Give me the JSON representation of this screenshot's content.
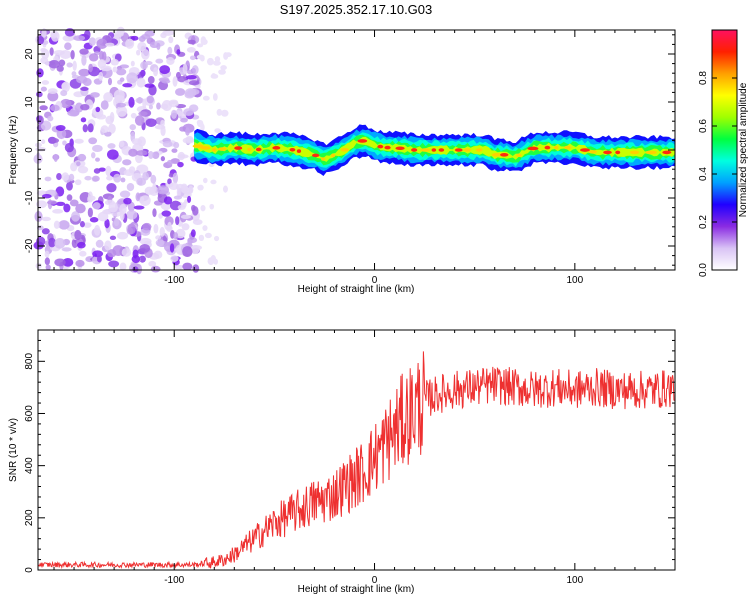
{
  "title": "S197.2025.352.17.10.G03",
  "chart_data": [
    {
      "type": "heatmap",
      "xlabel": "Height of straight line (km)",
      "ylabel": "Frequency (Hz)",
      "xlim": [
        -168,
        150
      ],
      "ylim": [
        -25,
        25
      ],
      "x_ticks": [
        -100,
        0,
        100
      ],
      "y_ticks": [
        -20,
        -10,
        0,
        10,
        20
      ],
      "x_tick_labels": [
        "-100",
        "0",
        "100"
      ],
      "y_tick_labels": [
        "-20",
        "-10",
        "0",
        "10",
        "20"
      ],
      "colorbar": {
        "label": "Normalized spectral amplitude",
        "range": [
          0,
          1
        ],
        "ticks": [
          0.0,
          0.2,
          0.4,
          0.6,
          0.8
        ],
        "tick_labels": [
          "0.0",
          "0.2",
          "0.4",
          "0.6",
          "0.8"
        ],
        "colors": [
          "#ffffff",
          "#d9c3f5",
          "#8a2be2",
          "#2000ff",
          "#00a0ff",
          "#00ffe0",
          "#00ff40",
          "#a0ff00",
          "#ffff00",
          "#ffa000",
          "#ff2000",
          "#ff1060"
        ]
      },
      "noise_region": {
        "x_range": [
          -168,
          -88
        ],
        "y_range": [
          -25,
          25
        ],
        "amplitude": 0.2
      },
      "ridge": {
        "x": [
          -90,
          -80,
          -70,
          -60,
          -50,
          -40,
          -30,
          -25,
          -20,
          -15,
          -10,
          -5,
          0,
          5,
          10,
          20,
          30,
          40,
          50,
          55,
          60,
          65,
          70,
          75,
          80,
          90,
          100,
          110,
          120,
          130,
          140,
          150
        ],
        "y": [
          1,
          0,
          0.5,
          0,
          0.5,
          0,
          -1,
          -2,
          -1,
          0,
          1.5,
          2,
          1,
          0.5,
          0.5,
          0,
          0,
          0,
          0,
          0,
          -1,
          -1,
          -1.5,
          -0.5,
          0.5,
          0.5,
          0.5,
          -0.5,
          -0.5,
          -0.5,
          -0.5,
          -0.5
        ],
        "amplitude": 0.95
      }
    },
    {
      "type": "line",
      "xlabel": "Height of straight line (km)",
      "ylabel": "SNR (10 * v/v)",
      "xlim": [
        -168,
        150
      ],
      "ylim": [
        0,
        920
      ],
      "x_ticks": [
        -100,
        0,
        100
      ],
      "y_ticks": [
        0,
        200,
        400,
        600,
        800
      ],
      "x_tick_labels": [
        "-100",
        "0",
        "100"
      ],
      "y_tick_labels": [
        "0",
        "200",
        "400",
        "600",
        "800"
      ],
      "series": [
        {
          "name": "SNR",
          "color": "#ee3030",
          "x": [
            -168,
            -150,
            -130,
            -110,
            -90,
            -80,
            -75,
            -70,
            -65,
            -60,
            -55,
            -50,
            -45,
            -40,
            -35,
            -30,
            -25,
            -20,
            -15,
            -10,
            -5,
            0,
            5,
            10,
            15,
            20,
            25,
            30,
            40,
            50,
            60,
            70,
            80,
            90,
            100,
            110,
            120,
            130,
            140,
            150
          ],
          "y": [
            20,
            20,
            20,
            20,
            20,
            30,
            40,
            60,
            90,
            120,
            150,
            180,
            200,
            220,
            240,
            260,
            270,
            290,
            320,
            350,
            380,
            430,
            480,
            530,
            580,
            620,
            650,
            670,
            690,
            700,
            710,
            700,
            690,
            700,
            690,
            700,
            690,
            690,
            690,
            700
          ]
        }
      ]
    }
  ]
}
